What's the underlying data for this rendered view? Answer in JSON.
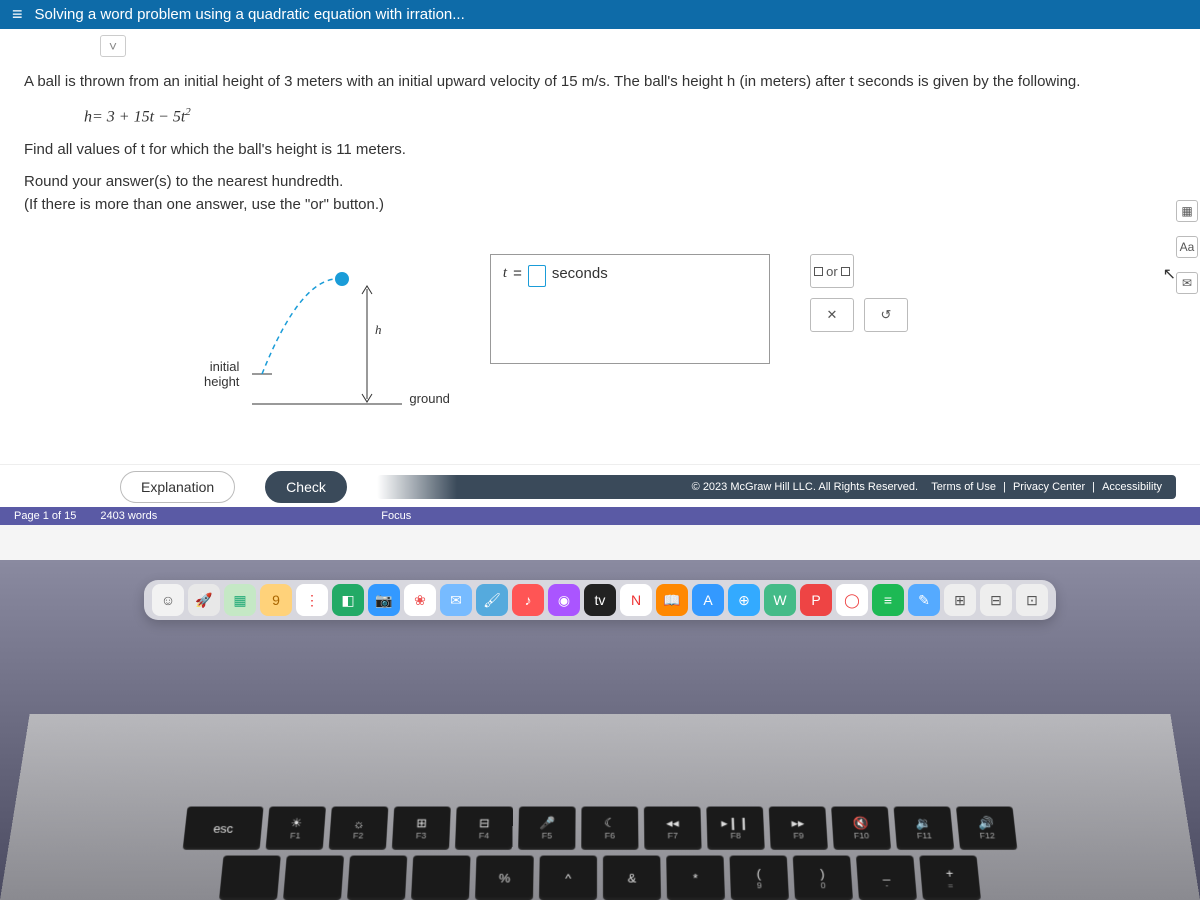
{
  "header": {
    "title": "Solving a word problem using a quadratic equation with irration..."
  },
  "problem": {
    "intro": "A ball is thrown from an initial height of 3 meters with an initial upward velocity of 15 m/s. The ball's height h (in meters) after t seconds is given by the following.",
    "equation_lhs": "h",
    "equation_rhs": "= 3 + 15t − 5t",
    "equation_exp": "2",
    "instruction1": "Find all values of t for which the ball's height is 11 meters.",
    "instruction2": "Round your answer(s) to the nearest hundredth.",
    "instruction3": "(If there is more than one answer, use the \"or\" button.)"
  },
  "diagram": {
    "initial_label1": "initial",
    "initial_label2": "height",
    "h_label": "h",
    "ground_label": "ground",
    "ball_color": "#1a9cd8",
    "line_color": "#1a9cd8",
    "arrow_color": "#333333"
  },
  "answer": {
    "prefix_var": "t",
    "prefix_eq": " = ",
    "unit": "seconds"
  },
  "tools": {
    "or_label": "or",
    "clear_label": "✕",
    "undo_label": "↺"
  },
  "side": {
    "calc": "▦",
    "font": "Aa",
    "mail": "✉"
  },
  "bottom": {
    "explanation": "Explanation",
    "check": "Check",
    "copyright": "© 2023 McGraw Hill LLC. All Rights Reserved.",
    "terms": "Terms of Use",
    "privacy": "Privacy Center",
    "accessibility": "Accessibility"
  },
  "status": {
    "page": "Page 1 of 15",
    "words": "2403 words",
    "focus": "Focus"
  },
  "dock": {
    "icons": [
      {
        "bg": "#f2f2f2",
        "fg": "#555",
        "g": "☺"
      },
      {
        "bg": "#e8e8e8",
        "fg": "#555",
        "g": "🚀"
      },
      {
        "bg": "#c5e8c5",
        "fg": "#2a7",
        "g": "▦"
      },
      {
        "bg": "#ffd27a",
        "fg": "#a60",
        "g": "9"
      },
      {
        "bg": "#fff",
        "fg": "#e33",
        "g": "⋮"
      },
      {
        "bg": "#2a6",
        "fg": "#fff",
        "g": "◧"
      },
      {
        "bg": "#39f",
        "fg": "#fff",
        "g": "📷"
      },
      {
        "bg": "#fff",
        "fg": "#e55",
        "g": "❀"
      },
      {
        "bg": "#7bf",
        "fg": "#fff",
        "g": "✉"
      },
      {
        "bg": "#5ad",
        "fg": "#fff",
        "g": "🖌"
      },
      {
        "bg": "#f55",
        "fg": "#fff",
        "g": "♪"
      },
      {
        "bg": "#a5f",
        "fg": "#fff",
        "g": "◉"
      },
      {
        "bg": "#222",
        "fg": "#fff",
        "g": "tv"
      },
      {
        "bg": "#fff",
        "fg": "#e33",
        "g": "N"
      },
      {
        "bg": "#f80",
        "fg": "#fff",
        "g": "📖"
      },
      {
        "bg": "#39f",
        "fg": "#fff",
        "g": "A"
      },
      {
        "bg": "#3af",
        "fg": "#fff",
        "g": "⊕"
      },
      {
        "bg": "#4b8",
        "fg": "#fff",
        "g": "W"
      },
      {
        "bg": "#e44",
        "fg": "#fff",
        "g": "P"
      },
      {
        "bg": "#fff",
        "fg": "#e44",
        "g": "◯"
      },
      {
        "bg": "#1db954",
        "fg": "#fff",
        "g": "≡"
      },
      {
        "bg": "#5af",
        "fg": "#fff",
        "g": "✎"
      },
      {
        "bg": "#eee",
        "fg": "#555",
        "g": "⊞"
      },
      {
        "bg": "#eee",
        "fg": "#555",
        "g": "⊟"
      },
      {
        "bg": "#eee",
        "fg": "#555",
        "g": "⊡"
      }
    ]
  },
  "keyboard": {
    "frow": [
      {
        "top": "esc",
        "sub": ""
      },
      {
        "top": "☀",
        "sub": "F1"
      },
      {
        "top": "☼",
        "sub": "F2"
      },
      {
        "top": "⊞",
        "sub": "F3"
      },
      {
        "top": "⊟",
        "sub": "F4"
      },
      {
        "top": "🎤",
        "sub": "F5"
      },
      {
        "top": "☾",
        "sub": "F6"
      },
      {
        "top": "◂◂",
        "sub": "F7"
      },
      {
        "top": "▸❙❙",
        "sub": "F8"
      },
      {
        "top": "▸▸",
        "sub": "F9"
      },
      {
        "top": "🔇",
        "sub": "F10"
      },
      {
        "top": "🔉",
        "sub": "F11"
      },
      {
        "top": "🔊",
        "sub": "F12"
      }
    ],
    "nrow": [
      {
        "top": "",
        "sub": ""
      },
      {
        "top": "",
        "sub": ""
      },
      {
        "top": "",
        "sub": ""
      },
      {
        "top": "",
        "sub": ""
      },
      {
        "top": "%",
        "sub": ""
      },
      {
        "top": "^",
        "sub": ""
      },
      {
        "top": "&",
        "sub": ""
      },
      {
        "top": "*",
        "sub": ""
      },
      {
        "top": "(",
        "sub": "9"
      },
      {
        "top": ")",
        "sub": "0"
      },
      {
        "top": "_",
        "sub": "-"
      },
      {
        "top": "+",
        "sub": "="
      }
    ]
  }
}
